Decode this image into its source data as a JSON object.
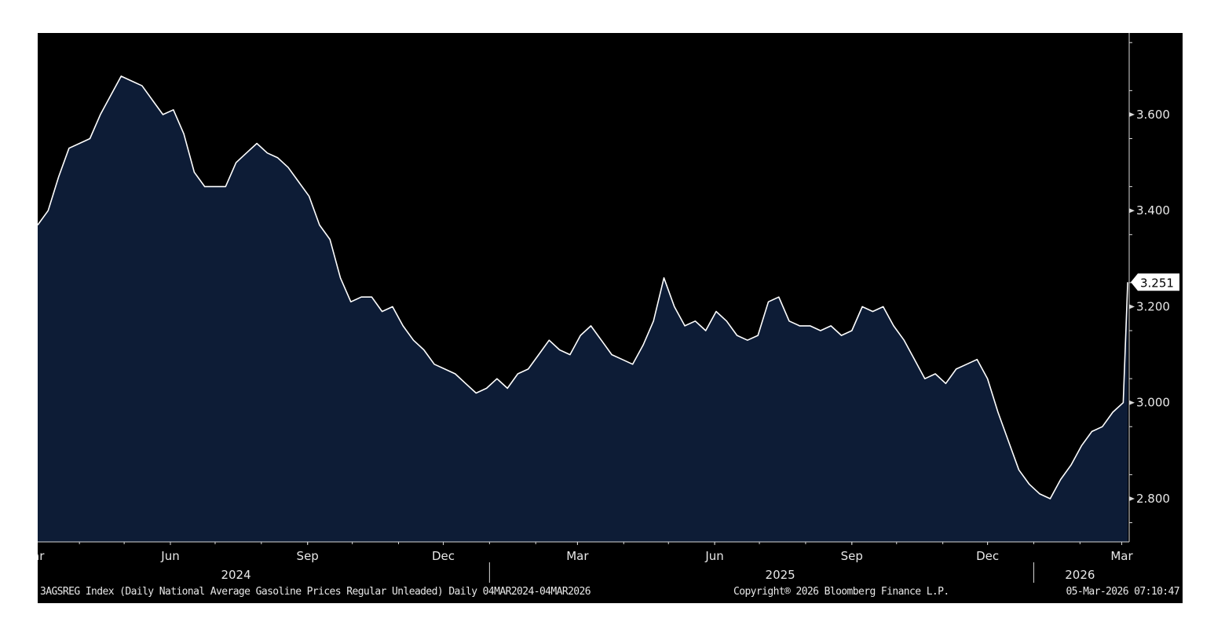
{
  "chart_data": {
    "type": "area",
    "ylim": [
      2.71,
      3.77
    ],
    "y_ticks": [
      "3.600",
      "3.400",
      "3.200",
      "3.000",
      "2.800"
    ],
    "y_tick_values": [
      3.6,
      3.4,
      3.2,
      3.0,
      2.8
    ],
    "x_month_labels": [
      "Mar",
      "Jun",
      "Sep",
      "Dec",
      "Mar",
      "Jun",
      "Sep",
      "Dec",
      "Mar"
    ],
    "x_month_dates": [
      "2024-03-01",
      "2024-06-01",
      "2024-09-01",
      "2024-12-01",
      "2025-03-01",
      "2025-06-01",
      "2025-09-01",
      "2025-12-01",
      "2026-03-01"
    ],
    "x_year_labels": [
      "2024",
      "2025",
      "2026"
    ],
    "x_year_label_dates": [
      "2024-07-15",
      "2025-07-15",
      "2026-02-01"
    ],
    "year_separators": [
      "2025-01-01",
      "2026-01-01"
    ],
    "x_range": [
      "2024-03-04",
      "2026-03-06"
    ],
    "last_value_label": "3.251",
    "grid": false,
    "fill_color": "#0d1c36",
    "line_color": "#ffffff",
    "background_color": "#000000",
    "series": [
      {
        "x": [
          "2024-03-04",
          "2024-03-11",
          "2024-03-18",
          "2024-03-25",
          "2024-04-01",
          "2024-04-08",
          "2024-04-15",
          "2024-04-22",
          "2024-04-29",
          "2024-05-06",
          "2024-05-13",
          "2024-05-20",
          "2024-05-27",
          "2024-06-03",
          "2024-06-10",
          "2024-06-17",
          "2024-06-24",
          "2024-07-01",
          "2024-07-08",
          "2024-07-15",
          "2024-07-22",
          "2024-07-29",
          "2024-08-05",
          "2024-08-12",
          "2024-08-19",
          "2024-08-26",
          "2024-09-02",
          "2024-09-09",
          "2024-09-16",
          "2024-09-23",
          "2024-09-30",
          "2024-10-07",
          "2024-10-14",
          "2024-10-21",
          "2024-10-28",
          "2024-11-04",
          "2024-11-11",
          "2024-11-18",
          "2024-11-25",
          "2024-12-02",
          "2024-12-09",
          "2024-12-16",
          "2024-12-23",
          "2024-12-30",
          "2025-01-06",
          "2025-01-13",
          "2025-01-20",
          "2025-01-27",
          "2025-02-03",
          "2025-02-10",
          "2025-02-17",
          "2025-02-24",
          "2025-03-03",
          "2025-03-10",
          "2025-03-17",
          "2025-03-24",
          "2025-03-31",
          "2025-04-07",
          "2025-04-14",
          "2025-04-21",
          "2025-04-28",
          "2025-05-05",
          "2025-05-12",
          "2025-05-19",
          "2025-05-26",
          "2025-06-02",
          "2025-06-09",
          "2025-06-16",
          "2025-06-23",
          "2025-06-30",
          "2025-07-07",
          "2025-07-14",
          "2025-07-21",
          "2025-07-28",
          "2025-08-04",
          "2025-08-11",
          "2025-08-18",
          "2025-08-25",
          "2025-09-01",
          "2025-09-08",
          "2025-09-15",
          "2025-09-22",
          "2025-09-29",
          "2025-10-06",
          "2025-10-13",
          "2025-10-20",
          "2025-10-27",
          "2025-11-03",
          "2025-11-10",
          "2025-11-17",
          "2025-11-24",
          "2025-12-01",
          "2025-12-08",
          "2025-12-15",
          "2025-12-22",
          "2025-12-29",
          "2026-01-05",
          "2026-01-12",
          "2026-01-19",
          "2026-01-26",
          "2026-02-02",
          "2026-02-09",
          "2026-02-16",
          "2026-02-23",
          "2026-03-02",
          "2026-03-05"
        ],
        "values": [
          3.37,
          3.4,
          3.47,
          3.53,
          3.54,
          3.55,
          3.6,
          3.64,
          3.68,
          3.67,
          3.66,
          3.63,
          3.6,
          3.61,
          3.56,
          3.48,
          3.45,
          3.45,
          3.45,
          3.5,
          3.52,
          3.54,
          3.52,
          3.51,
          3.49,
          3.46,
          3.43,
          3.37,
          3.34,
          3.26,
          3.21,
          3.22,
          3.22,
          3.19,
          3.2,
          3.16,
          3.13,
          3.11,
          3.08,
          3.07,
          3.06,
          3.04,
          3.02,
          3.03,
          3.05,
          3.03,
          3.06,
          3.07,
          3.1,
          3.13,
          3.11,
          3.1,
          3.14,
          3.16,
          3.13,
          3.1,
          3.09,
          3.08,
          3.12,
          3.17,
          3.26,
          3.2,
          3.16,
          3.17,
          3.15,
          3.19,
          3.17,
          3.14,
          3.13,
          3.14,
          3.21,
          3.22,
          3.17,
          3.16,
          3.16,
          3.15,
          3.16,
          3.14,
          3.15,
          3.2,
          3.19,
          3.2,
          3.16,
          3.13,
          3.09,
          3.05,
          3.06,
          3.04,
          3.07,
          3.08,
          3.09,
          3.05,
          2.98,
          2.92,
          2.86,
          2.83,
          2.81,
          2.8,
          2.84,
          2.87,
          2.91,
          2.94,
          2.95,
          2.98,
          3.0,
          3.251
        ]
      }
    ]
  },
  "footer": {
    "description": "3AGSREG Index (Daily National Average Gasoline Prices Regular Unleaded) Daily 04MAR2024-04MAR2026",
    "copyright": "Copyright® 2026 Bloomberg Finance L.P.",
    "timestamp": "05-Mar-2026 07:10:47"
  }
}
